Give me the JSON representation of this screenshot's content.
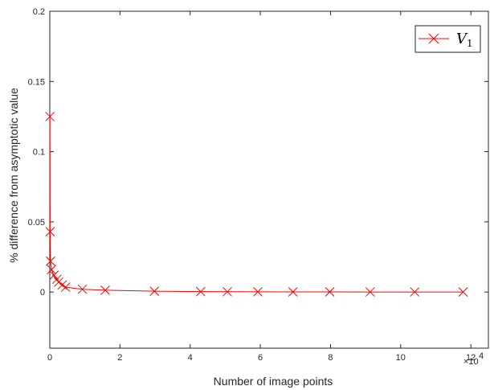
{
  "chart_data": {
    "type": "line",
    "title": "",
    "xlabel": "Number of image points",
    "ylabel": "% difference from asymptotic value",
    "x_exponent_label": "×10",
    "x_exponent_power": "4",
    "xlim": [
      0,
      12.5
    ],
    "ylim": [
      -0.04,
      0.2
    ],
    "xticks": [
      0,
      2,
      4,
      6,
      8,
      10,
      12
    ],
    "xtick_labels": [
      "0",
      "2",
      "4",
      "6",
      "8",
      "10",
      "12"
    ],
    "yticks": [
      0,
      0.05,
      0.1,
      0.15,
      0.2
    ],
    "ytick_labels": [
      "0",
      "0.05",
      "0.1",
      "0.15",
      "0.2"
    ],
    "grid": false,
    "legend_position": "top-right",
    "series": [
      {
        "name": "V",
        "name_subscript": "1",
        "color": "#ff0000",
        "marker": "x",
        "x": [
          0.005,
          0.01,
          0.02,
          0.05,
          0.12,
          0.2,
          0.25,
          0.35,
          0.45,
          0.93,
          1.58,
          2.98,
          4.3,
          5.06,
          5.93,
          6.93,
          7.98,
          9.13,
          10.4,
          11.78
        ],
        "y": [
          0.125,
          0.043,
          0.022,
          0.016,
          0.012,
          0.009,
          0.007,
          0.005,
          0.0035,
          0.002,
          0.0013,
          0.0006,
          0.0003,
          0.0002,
          0.00015,
          0.0001,
          8e-05,
          6e-05,
          5e-05,
          3e-05
        ]
      }
    ]
  }
}
